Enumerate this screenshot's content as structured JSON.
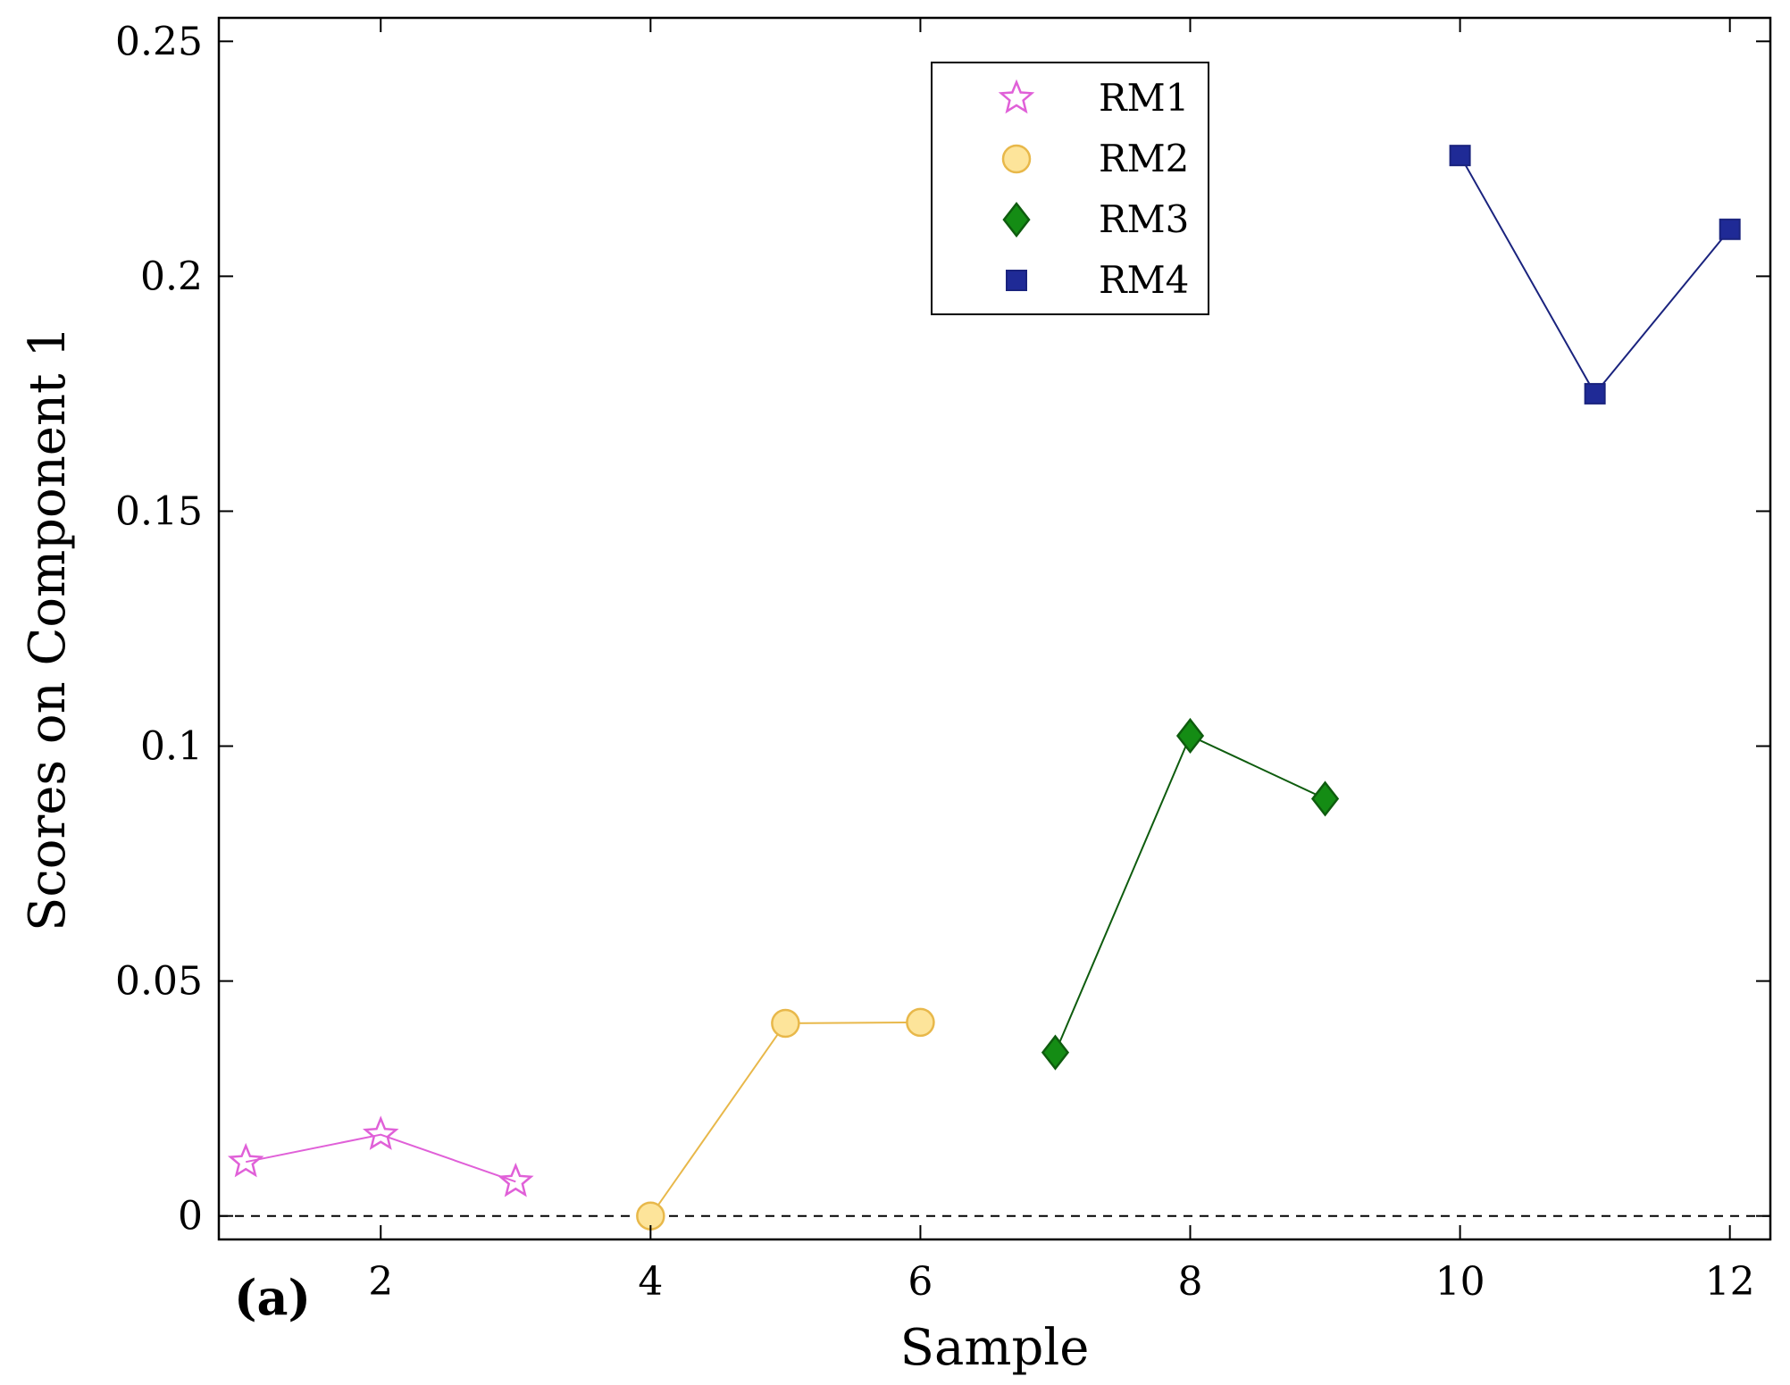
{
  "chart_data": {
    "type": "line",
    "title": "",
    "xlabel": "Sample",
    "ylabel": "Scores on Component 1",
    "panel_label": "(a)",
    "xlim": [
      0.8,
      12.3
    ],
    "ylim": [
      -0.005,
      0.255
    ],
    "xticks": [
      2,
      4,
      6,
      8,
      10,
      12
    ],
    "xtick_labels": [
      "2",
      "4",
      "6",
      "8",
      "10",
      "12"
    ],
    "yticks": [
      0,
      0.05,
      0.1,
      0.15,
      0.2,
      0.25
    ],
    "ytick_labels": [
      "0",
      "0.05",
      "0.1",
      "0.15",
      "0.2",
      "0.25"
    ],
    "reference_line": {
      "y": 0,
      "style": "dashed"
    },
    "legend_position": "top-center",
    "series": [
      {
        "name": "RM1",
        "marker": "star",
        "color": "#e060d8",
        "x": [
          1,
          2,
          3
        ],
        "y": [
          0.0115,
          0.0173,
          0.0073
        ]
      },
      {
        "name": "RM2",
        "marker": "circle",
        "color": "#e8b84a",
        "fill": "#fde49a",
        "x": [
          4,
          5,
          6
        ],
        "y": [
          0.0,
          0.041,
          0.0412
        ]
      },
      {
        "name": "RM3",
        "marker": "diamond",
        "color": "#0e5c0e",
        "fill": "#148c14",
        "x": [
          7,
          8,
          9
        ],
        "y": [
          0.0348,
          0.1022,
          0.0888
        ]
      },
      {
        "name": "RM4",
        "marker": "square",
        "color": "#1a237e",
        "fill": "#1f2a96",
        "x": [
          10,
          11,
          12
        ],
        "y": [
          0.2257,
          0.175,
          0.21
        ]
      }
    ]
  }
}
